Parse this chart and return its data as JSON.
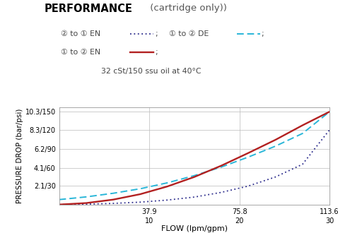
{
  "title_bold": "PERFORMANCE",
  "title_normal": " (cartridge only))",
  "legend_line1_label1": "② to ① EN",
  "legend_line1_label2": "① to ② DE",
  "legend_line2_label1": "① to ② EN",
  "oil_note": "32 cSt/150 ssu oil at 40°C",
  "ylabel": "PRESSURE DROP (bar/psi)",
  "xlabel": "FLOW (lpm/gpm)",
  "x_ticks_lpm": [
    37.9,
    75.8,
    113.6
  ],
  "x_ticks_gpm": [
    10,
    20,
    30
  ],
  "y_ticks_labels": [
    "2.1/30",
    "4.1/60",
    "6.2/90",
    "8.3/120",
    "10.3/150"
  ],
  "y_ticks_values": [
    2.1,
    4.1,
    6.2,
    8.3,
    10.3
  ],
  "xlim": [
    0,
    113.6
  ],
  "ylim": [
    0,
    10.8
  ],
  "color_en21": "#2c2c8c",
  "color_de12": "#29b6d8",
  "color_en12": "#b22020",
  "bg_color": "#ffffff",
  "x_data": [
    0,
    11.36,
    22.72,
    34.08,
    45.44,
    56.8,
    68.16,
    79.52,
    90.88,
    102.24,
    113.6
  ],
  "y_en21": [
    0.05,
    0.1,
    0.18,
    0.32,
    0.55,
    0.88,
    1.4,
    2.1,
    3.1,
    4.5,
    8.3
  ],
  "y_de12": [
    0.6,
    0.9,
    1.3,
    1.8,
    2.45,
    3.25,
    4.2,
    5.3,
    6.5,
    7.9,
    10.3
  ],
  "y_en12": [
    0.05,
    0.22,
    0.6,
    1.2,
    2.05,
    3.1,
    4.35,
    5.75,
    7.2,
    8.8,
    10.3
  ]
}
